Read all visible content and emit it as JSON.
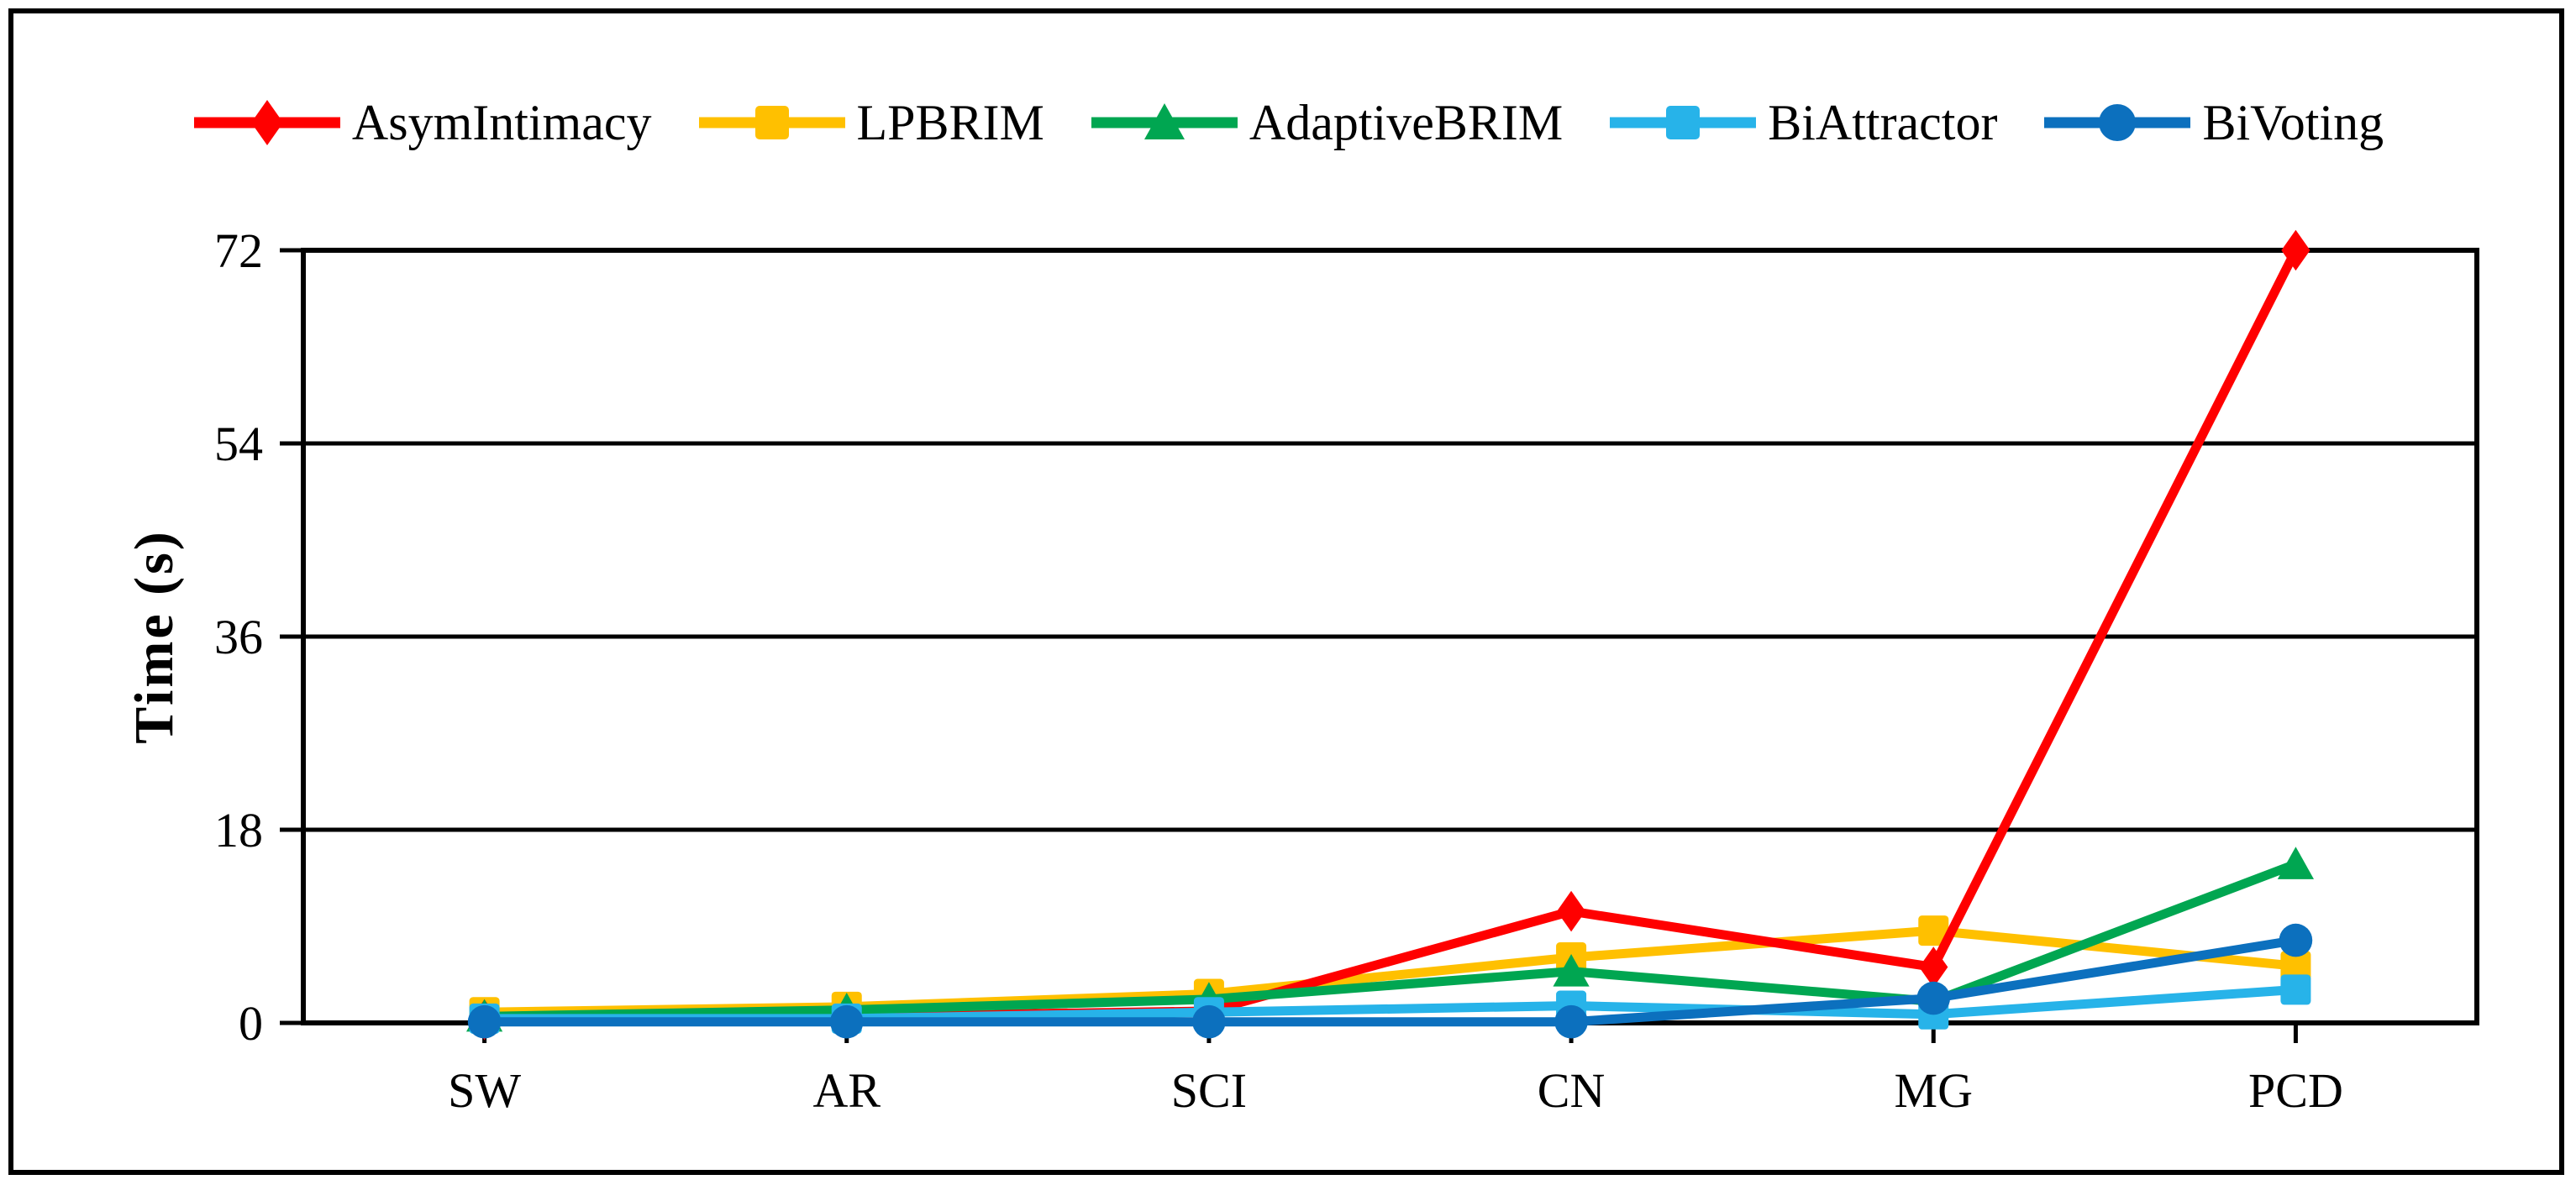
{
  "figure": {
    "background": "#ffffff",
    "border_color": "#000000"
  },
  "chart_data": {
    "type": "line",
    "title": "",
    "xlabel": "",
    "ylabel": "Time (s)",
    "categories": [
      "SW",
      "AR",
      "SCI",
      "CN",
      "MG",
      "PCD"
    ],
    "ylim": [
      0,
      72
    ],
    "yticks": [
      0,
      18,
      36,
      54,
      72
    ],
    "grid": "horizontal-black",
    "legend_position": "top-center",
    "marker_legend": {
      "diamond": "diamond-marker-icon",
      "square": "square-marker-icon",
      "triangle": "triangle-marker-icon",
      "circle": "circle-marker-icon"
    },
    "series": [
      {
        "name": "AsymIntimacy",
        "color": "#FF0000",
        "marker": "diamond",
        "values": [
          0.3,
          0.6,
          1.1,
          10.4,
          5.2,
          72
        ]
      },
      {
        "name": "LPBRIM",
        "color": "#FFC000",
        "marker": "square",
        "values": [
          1.0,
          1.5,
          2.7,
          6.1,
          8.6,
          5.3
        ]
      },
      {
        "name": "AdaptiveBRIM",
        "color": "#00A651",
        "marker": "triangle",
        "values": [
          0.6,
          1.2,
          2.2,
          4.8,
          2.0,
          14.8
        ]
      },
      {
        "name": "BiAttractor",
        "color": "#27B3E9",
        "marker": "square",
        "values": [
          0.4,
          0.4,
          1.0,
          1.6,
          0.8,
          3.1
        ]
      },
      {
        "name": "BiVoting",
        "color": "#0C70BE",
        "marker": "circle",
        "values": [
          0.1,
          0.1,
          0.1,
          0.1,
          2.3,
          7.7
        ]
      }
    ]
  }
}
